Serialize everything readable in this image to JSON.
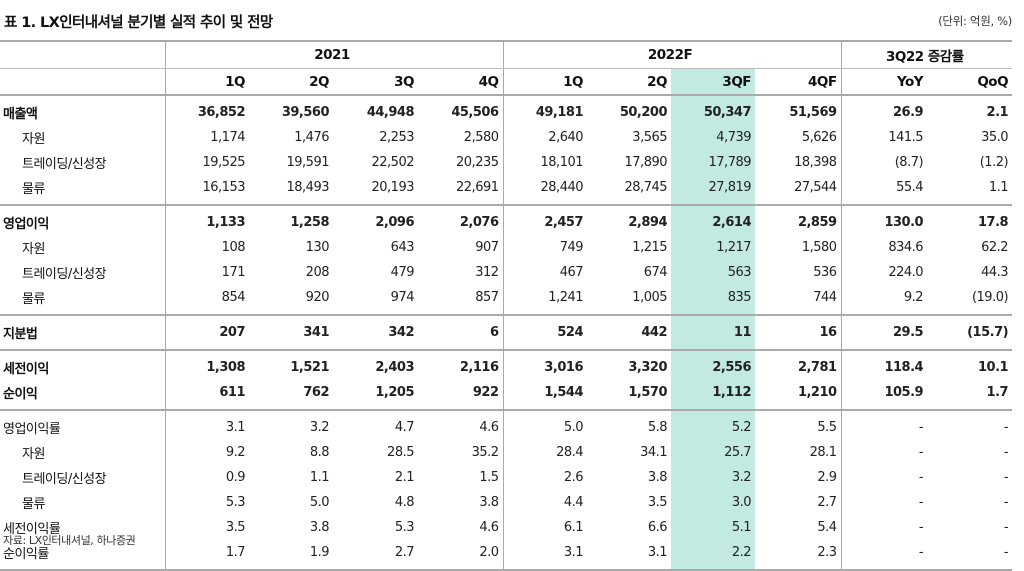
{
  "title": "표 1. LX인터내셔널 분기별 실적 추이 및 전망",
  "unit": "(단위: 억원, %)",
  "header": {
    "years": [
      "2021",
      "2022F",
      "3Q22 증감률"
    ],
    "quarters": [
      "1Q",
      "2Q",
      "3Q",
      "4Q",
      "1Q",
      "2Q",
      "3QF",
      "4QF",
      "YoY",
      "QoQ"
    ]
  },
  "highlight_column": "3QF",
  "highlight_color": "#c2e9e2",
  "rows": [
    {
      "label": "매출액",
      "bold": true,
      "indent": false,
      "group_start": true,
      "values": [
        "36,852",
        "39,560",
        "44,948",
        "45,506",
        "49,181",
        "50,200",
        "50,347",
        "51,569",
        "26.9",
        "2.1"
      ]
    },
    {
      "label": "자원",
      "bold": false,
      "indent": true,
      "values": [
        "1,174",
        "1,476",
        "2,253",
        "2,580",
        "2,640",
        "3,565",
        "4,739",
        "5,626",
        "141.5",
        "35.0"
      ]
    },
    {
      "label": "트레이딩/신성장",
      "bold": false,
      "indent": true,
      "values": [
        "19,525",
        "19,591",
        "22,502",
        "20,235",
        "18,101",
        "17,890",
        "17,789",
        "18,398",
        "(8.7)",
        "(1.2)"
      ]
    },
    {
      "label": "물류",
      "bold": false,
      "indent": true,
      "group_end": true,
      "values": [
        "16,153",
        "18,493",
        "20,193",
        "22,691",
        "28,440",
        "28,745",
        "27,819",
        "27,544",
        "55.4",
        "1.1"
      ]
    },
    {
      "label": "영업이익",
      "bold": true,
      "indent": false,
      "group_start": true,
      "values": [
        "1,133",
        "1,258",
        "2,096",
        "2,076",
        "2,457",
        "2,894",
        "2,614",
        "2,859",
        "130.0",
        "17.8"
      ]
    },
    {
      "label": "자원",
      "bold": false,
      "indent": true,
      "values": [
        "108",
        "130",
        "643",
        "907",
        "749",
        "1,215",
        "1,217",
        "1,580",
        "834.6",
        "62.2"
      ]
    },
    {
      "label": "트레이딩/신성장",
      "bold": false,
      "indent": true,
      "values": [
        "171",
        "208",
        "479",
        "312",
        "467",
        "674",
        "563",
        "536",
        "224.0",
        "44.3"
      ]
    },
    {
      "label": "물류",
      "bold": false,
      "indent": true,
      "group_end": true,
      "values": [
        "854",
        "920",
        "974",
        "857",
        "1,241",
        "1,005",
        "835",
        "744",
        "9.2",
        "(19.0)"
      ]
    },
    {
      "label": "지분법",
      "bold": true,
      "indent": false,
      "group_start": true,
      "group_end": true,
      "values": [
        "207",
        "341",
        "342",
        "6",
        "524",
        "442",
        "11",
        "16",
        "29.5",
        "(15.7)"
      ]
    },
    {
      "label": "세전이익",
      "bold": true,
      "indent": false,
      "group_start": true,
      "values": [
        "1,308",
        "1,521",
        "2,403",
        "2,116",
        "3,016",
        "3,320",
        "2,556",
        "2,781",
        "118.4",
        "10.1"
      ]
    },
    {
      "label": "순이익",
      "bold": true,
      "indent": false,
      "group_end": true,
      "values": [
        "611",
        "762",
        "1,205",
        "922",
        "1,544",
        "1,570",
        "1,112",
        "1,210",
        "105.9",
        "1.7"
      ]
    },
    {
      "label": "영업이익률",
      "bold": false,
      "indent": false,
      "group_start": true,
      "values": [
        "3.1",
        "3.2",
        "4.7",
        "4.6",
        "5.0",
        "5.8",
        "5.2",
        "5.5",
        "-",
        "-"
      ]
    },
    {
      "label": "자원",
      "bold": false,
      "indent": true,
      "values": [
        "9.2",
        "8.8",
        "28.5",
        "35.2",
        "28.4",
        "34.1",
        "25.7",
        "28.1",
        "-",
        "-"
      ]
    },
    {
      "label": "트레이딩/신성장",
      "bold": false,
      "indent": true,
      "values": [
        "0.9",
        "1.1",
        "2.1",
        "1.5",
        "2.6",
        "3.8",
        "3.2",
        "2.9",
        "-",
        "-"
      ]
    },
    {
      "label": "물류",
      "bold": false,
      "indent": true,
      "values": [
        "5.3",
        "5.0",
        "4.8",
        "3.8",
        "4.4",
        "3.5",
        "3.0",
        "2.7",
        "-",
        "-"
      ]
    },
    {
      "label": "세전이익률",
      "bold": false,
      "indent": false,
      "values": [
        "3.5",
        "3.8",
        "5.3",
        "4.6",
        "6.1",
        "6.6",
        "5.1",
        "5.4",
        "-",
        "-"
      ]
    },
    {
      "label": "순이익률",
      "bold": false,
      "indent": false,
      "group_end": true,
      "values": [
        "1.7",
        "1.9",
        "2.7",
        "2.0",
        "3.1",
        "3.1",
        "2.2",
        "2.3",
        "-",
        "-"
      ]
    }
  ],
  "source": "자료: LX인터내셔널, 하나증권"
}
